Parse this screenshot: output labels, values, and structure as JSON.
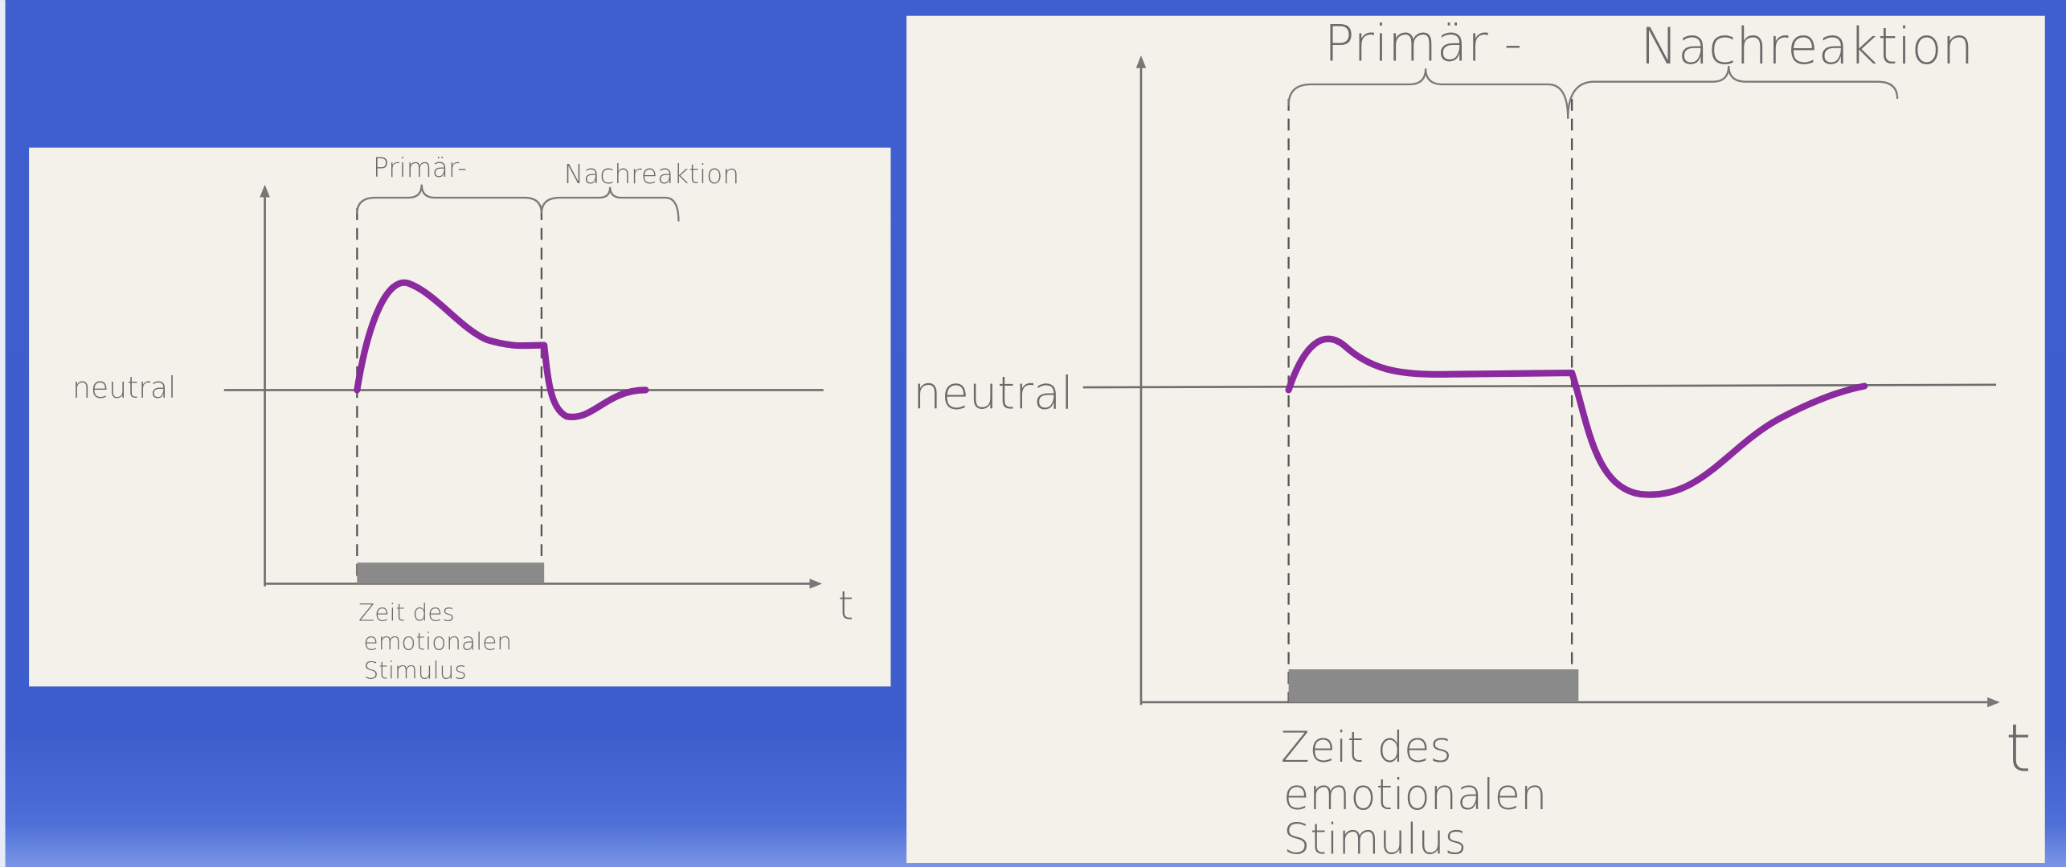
{
  "panels": [
    {
      "primary_label": "Primär-",
      "after_label": "Nachreaktion",
      "baseline_label": "neutral",
      "axis_label": "t",
      "stimulus_label": [
        "Zeit des",
        "emotionalen",
        "Stimulus"
      ]
    },
    {
      "primary_label": "Primär -",
      "after_label": "Nachreaktion",
      "baseline_label": "neutral",
      "axis_label": "t",
      "stimulus_label": [
        "Zeit des",
        "emotionalen",
        "Stimulus"
      ]
    }
  ]
}
